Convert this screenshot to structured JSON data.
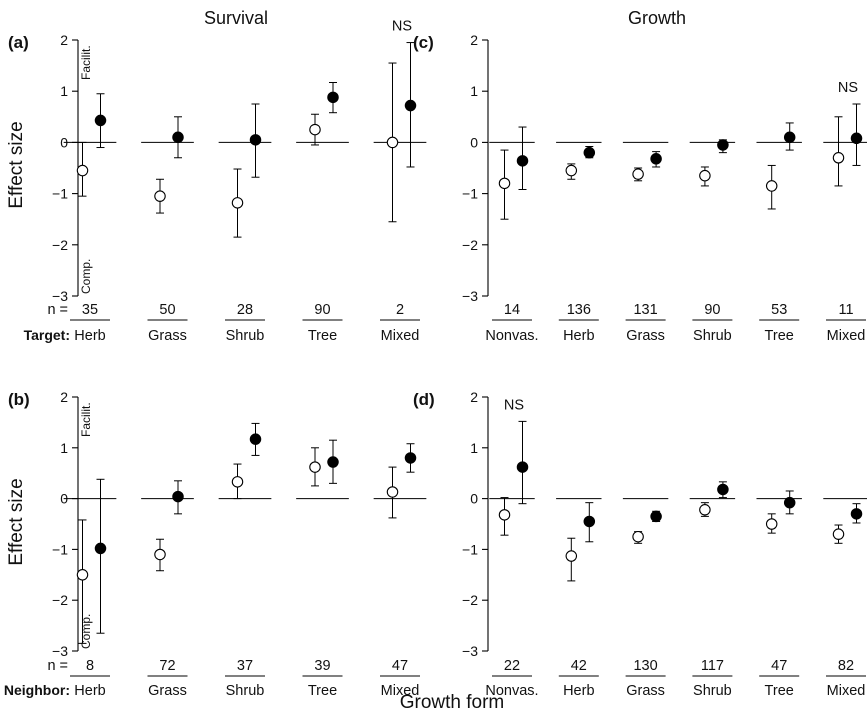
{
  "figure": {
    "col_titles": [
      "Survival",
      "Growth"
    ],
    "y_axis_label": "Effect size",
    "x_axis_label": "Growth form",
    "facilit_label": "Facilit.",
    "comp_label": "Comp.",
    "n_prefix": "n =",
    "row_labels": [
      "Target:",
      "Neighbor:"
    ]
  },
  "chart_data": [
    {
      "panel": "(a)",
      "type": "scatter",
      "title": "Survival",
      "ylabel": "Effect size",
      "ylim": [
        -3,
        2
      ],
      "yticks": [
        -3,
        -2,
        -1,
        0,
        1,
        2
      ],
      "row_label": "Target:",
      "show_side_labels": true,
      "categories": [
        "Herb",
        "Grass",
        "Shrub",
        "Tree",
        "Mixed"
      ],
      "n": [
        "35",
        "50",
        "28",
        "90",
        "2"
      ],
      "ns_labels": [
        {
          "index": 4,
          "text": "NS"
        }
      ],
      "series": [
        {
          "marker": "open",
          "y": [
            -0.55,
            -1.05,
            -1.18,
            0.25,
            0.0
          ],
          "lo": [
            -1.05,
            -1.38,
            -1.85,
            -0.05,
            -1.55
          ],
          "hi": [
            0.0,
            -0.72,
            -0.52,
            0.55,
            1.55
          ]
        },
        {
          "marker": "filled",
          "y": [
            0.43,
            0.1,
            0.05,
            0.88,
            0.72
          ],
          "lo": [
            -0.1,
            -0.3,
            -0.68,
            0.58,
            -0.48
          ],
          "hi": [
            0.95,
            0.5,
            0.75,
            1.17,
            1.95
          ]
        }
      ]
    },
    {
      "panel": "(b)",
      "type": "scatter",
      "ylabel": "Effect size",
      "ylim": [
        -3,
        2
      ],
      "yticks": [
        -3,
        -2,
        -1,
        0,
        1,
        2
      ],
      "row_label": "Neighbor:",
      "show_side_labels": true,
      "categories": [
        "Herb",
        "Grass",
        "Shrub",
        "Tree",
        "Mixed"
      ],
      "n": [
        "8",
        "72",
        "37",
        "39",
        "47"
      ],
      "ns_labels": [],
      "series": [
        {
          "marker": "open",
          "y": [
            -1.5,
            -1.1,
            0.33,
            0.62,
            0.13
          ],
          "lo": [
            -2.85,
            -1.42,
            0.0,
            0.25,
            -0.38
          ],
          "hi": [
            -0.42,
            -0.8,
            0.68,
            1.0,
            0.62
          ]
        },
        {
          "marker": "filled",
          "y": [
            -0.98,
            0.04,
            1.17,
            0.72,
            0.8
          ],
          "lo": [
            -2.65,
            -0.3,
            0.85,
            0.3,
            0.52
          ],
          "hi": [
            0.38,
            0.35,
            1.48,
            1.15,
            1.08
          ]
        }
      ]
    },
    {
      "panel": "(c)",
      "type": "scatter",
      "title": "Growth",
      "ylim": [
        -3,
        2
      ],
      "yticks": [
        -3,
        -2,
        -1,
        0,
        1,
        2
      ],
      "show_side_labels": false,
      "categories": [
        "Nonvas.",
        "Herb",
        "Grass",
        "Shrub",
        "Tree",
        "Mixed"
      ],
      "n": [
        "14",
        "136",
        "131",
        "90",
        "53",
        "11"
      ],
      "ns_labels": [
        {
          "index": 5,
          "text": "NS"
        }
      ],
      "series": [
        {
          "marker": "open",
          "y": [
            -0.8,
            -0.55,
            -0.62,
            -0.65,
            -0.85,
            -0.3
          ],
          "lo": [
            -1.5,
            -0.72,
            -0.75,
            -0.85,
            -1.3,
            -0.85
          ],
          "hi": [
            -0.15,
            -0.42,
            -0.5,
            -0.48,
            -0.45,
            0.5
          ]
        },
        {
          "marker": "filled",
          "y": [
            -0.36,
            -0.2,
            -0.32,
            -0.05,
            0.1,
            0.08
          ],
          "lo": [
            -0.92,
            -0.3,
            -0.48,
            -0.2,
            -0.15,
            -0.45
          ],
          "hi": [
            0.3,
            -0.08,
            -0.18,
            0.05,
            0.38,
            0.75
          ]
        }
      ]
    },
    {
      "panel": "(d)",
      "type": "scatter",
      "ylim": [
        -3,
        2
      ],
      "yticks": [
        -3,
        -2,
        -1,
        0,
        1,
        2
      ],
      "show_side_labels": false,
      "categories": [
        "Nonvas.",
        "Herb",
        "Grass",
        "Shrub",
        "Tree",
        "Mixed"
      ],
      "n": [
        "22",
        "42",
        "130",
        "117",
        "47",
        "82"
      ],
      "ns_labels": [
        {
          "index": 0,
          "text": "NS"
        }
      ],
      "series": [
        {
          "marker": "open",
          "y": [
            -0.32,
            -1.13,
            -0.75,
            -0.22,
            -0.5,
            -0.7
          ],
          "lo": [
            -0.72,
            -1.62,
            -0.88,
            -0.35,
            -0.68,
            -0.88
          ],
          "hi": [
            0.02,
            -0.78,
            -0.65,
            -0.08,
            -0.3,
            -0.52
          ]
        },
        {
          "marker": "filled",
          "y": [
            0.62,
            -0.45,
            -0.35,
            0.18,
            -0.08,
            -0.3
          ],
          "lo": [
            -0.1,
            -0.85,
            -0.45,
            0.02,
            -0.3,
            -0.48
          ],
          "hi": [
            1.52,
            -0.08,
            -0.25,
            0.33,
            0.15,
            -0.1
          ]
        }
      ]
    }
  ]
}
